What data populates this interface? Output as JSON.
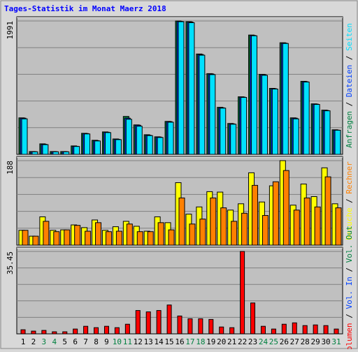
{
  "title": "Tages-Statistik im Monat Maerz 2018",
  "categories": [
    "1",
    "2",
    "3",
    "4",
    "5",
    "6",
    "7",
    "8",
    "9",
    "10",
    "11",
    "12",
    "13",
    "14",
    "15",
    "16",
    "17",
    "18",
    "19",
    "20",
    "21",
    "22",
    "23",
    "24",
    "25",
    "26",
    "27",
    "28",
    "29",
    "30",
    "31"
  ],
  "category_colors": [
    "#000000",
    "#000000",
    "#008040",
    "#008040",
    "#000000",
    "#000000",
    "#000000",
    "#000000",
    "#000000",
    "#008040",
    "#008040",
    "#000000",
    "#000000",
    "#000000",
    "#000000",
    "#000000",
    "#008040",
    "#008040",
    "#000000",
    "#000000",
    "#000000",
    "#000000",
    "#000000",
    "#008040",
    "#008040",
    "#000000",
    "#000000",
    "#000000",
    "#000000",
    "#000000",
    "#008040"
  ],
  "legend_separator": " / ",
  "chart_data": [
    {
      "type": "bar",
      "ylim": [
        0,
        1991
      ],
      "yticks": [
        1991
      ],
      "grid": true,
      "series": [
        {
          "name": "Anfragen",
          "color": "#008040",
          "values": [
            545,
            42,
            157,
            42,
            42,
            126,
            314,
            210,
            335,
            230,
            566,
            440,
            293,
            262,
            492,
            1991,
            1980,
            1498,
            1205,
            702,
            461,
            859,
            1781,
            1194,
            985,
            1666,
            545,
            1090,
            754,
            660,
            367
          ]
        },
        {
          "name": "Dateien",
          "color": "#0040ff",
          "values": [
            540,
            40,
            150,
            40,
            40,
            120,
            310,
            205,
            330,
            225,
            540,
            435,
            285,
            258,
            488,
            1985,
            1975,
            1490,
            1200,
            695,
            455,
            855,
            1775,
            1190,
            980,
            1660,
            540,
            1085,
            750,
            655,
            362
          ]
        },
        {
          "name": "Seiten",
          "color": "#00e0ff",
          "values": [
            530,
            38,
            145,
            38,
            38,
            118,
            305,
            200,
            325,
            220,
            524,
            420,
            280,
            252,
            480,
            1980,
            1965,
            1480,
            1190,
            690,
            450,
            850,
            1770,
            1180,
            975,
            1655,
            530,
            1080,
            745,
            650,
            360
          ]
        }
      ]
    },
    {
      "type": "bar",
      "ylim": [
        0,
        188
      ],
      "yticks": [
        188
      ],
      "grid": true,
      "series": [
        {
          "name": "Besuche",
          "color": "#ffff00",
          "values": [
            33,
            20,
            63,
            33,
            34,
            45,
            39,
            56,
            33,
            41,
            53,
            42,
            31,
            63,
            50,
            139,
            69,
            85,
            119,
            118,
            78,
            92,
            161,
            96,
            132,
            188,
            89,
            136,
            108,
            172,
            92
          ]
        },
        {
          "name": "Rechner",
          "color": "#ff8000",
          "values": [
            33,
            20,
            53,
            30,
            34,
            44,
            31,
            50,
            30,
            31,
            47,
            30,
            30,
            50,
            34,
            105,
            47,
            58,
            105,
            83,
            53,
            71,
            133,
            66,
            141,
            166,
            78,
            105,
            85,
            152,
            83
          ]
        }
      ]
    },
    {
      "type": "bar",
      "ylim": [
        0,
        35.45
      ],
      "yticks": [
        35.45
      ],
      "grid": true,
      "series": [
        {
          "name": "Volumen",
          "color": "#ff0000",
          "values": [
            1.77,
            1.18,
            1.48,
            0.89,
            0.89,
            2.07,
            3.25,
            2.66,
            3.25,
            2.66,
            4.14,
            10.04,
            9.45,
            10.04,
            12.41,
            7.68,
            6.5,
            6.5,
            6.2,
            2.95,
            2.66,
            35.45,
            13.29,
            3.25,
            2.07,
            4.14,
            4.73,
            3.55,
            3.84,
            3.55,
            2.07
          ]
        },
        {
          "name": "Vol. In",
          "color": "#0040ff"
        },
        {
          "name": "Vol. Out",
          "color": "#008040"
        }
      ]
    }
  ]
}
